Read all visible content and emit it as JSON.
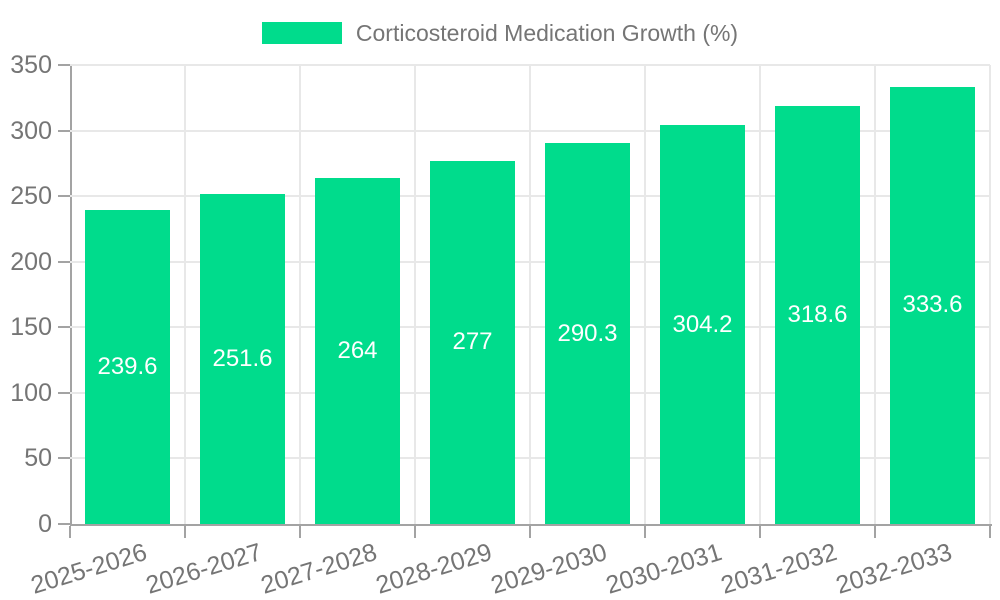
{
  "chart_data": {
    "type": "bar",
    "title": "Corticosteroid Medication Growth (%)",
    "categories": [
      "2025-2026",
      "2026-2027",
      "2027-2028",
      "2028-2029",
      "2029-2030",
      "2030-2031",
      "2031-2032",
      "2032-2033"
    ],
    "values": [
      239.6,
      251.6,
      264,
      277,
      290.3,
      304.2,
      318.6,
      333.6
    ],
    "bar_labels": [
      "239.6",
      "251.6",
      "264",
      "277",
      "290.3",
      "304.2",
      "318.6",
      "333.6"
    ],
    "xlabel": "",
    "ylabel": "",
    "ylim": [
      0,
      350
    ],
    "y_ticks": [
      0,
      50,
      100,
      150,
      200,
      250,
      300,
      350
    ],
    "grid": true,
    "legend_position": "top",
    "colors": {
      "bar": "#00DC8C",
      "bar_label_text": "#ffffff",
      "axis_text": "#757575",
      "grid_line": "#e8e8e8",
      "axis_line": "#a3a3a3",
      "background": "#ffffff"
    }
  },
  "legend": {
    "label": "Corticosteroid Medication Growth (%)"
  }
}
